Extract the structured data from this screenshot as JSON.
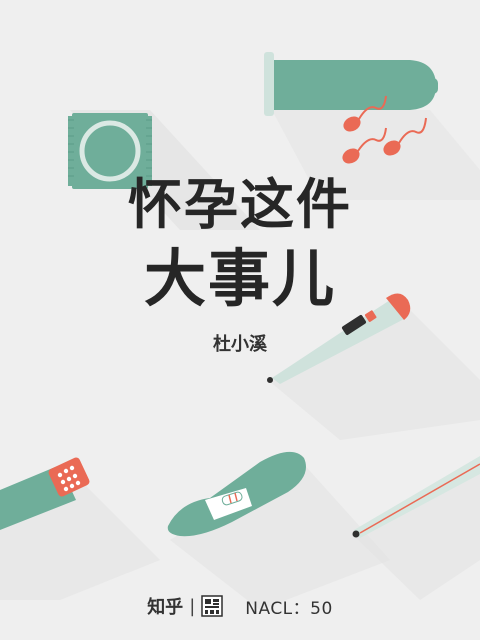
{
  "cover": {
    "title_line1": "怀孕这件",
    "title_line2": "大事儿",
    "author": "杜小溪",
    "publisher": "知乎",
    "divider": "|",
    "seal_text": "盐",
    "series_label": "NACL：50"
  },
  "colors": {
    "background": "#efefef",
    "teal": "#6fae9a",
    "teal_dark": "#4f9580",
    "coral": "#ea6a55",
    "title": "#262626"
  },
  "icons": [
    "condom-packet-icon",
    "condom-icon",
    "sperm-icon",
    "thermometer-icon",
    "pill-strip-icon",
    "pregnancy-test-icon",
    "mercury-thermometer-icon"
  ]
}
